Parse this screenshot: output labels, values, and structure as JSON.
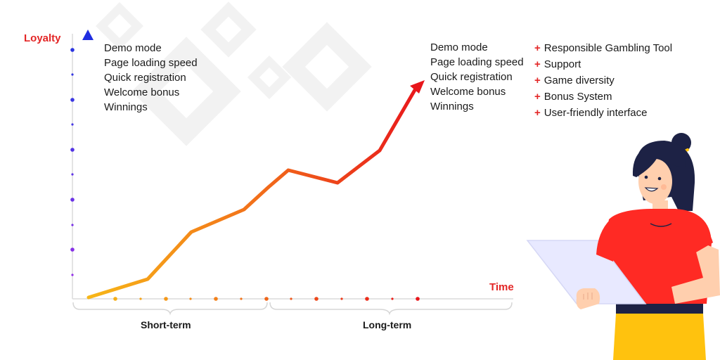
{
  "axes": {
    "y_title": "Loyalty",
    "x_title": "Time"
  },
  "periods": {
    "short": "Short-term",
    "long": "Long-term"
  },
  "left_factors": [
    "Demo mode",
    "Page loading speed",
    "Quick registration",
    "Welcome bonus",
    "Winnings"
  ],
  "right_factors": [
    "Demo mode",
    "Page loading speed",
    "Quick registration",
    "Welcome bonus",
    "Winnings"
  ],
  "extras": {
    "marker": "+",
    "items": [
      "Responsible Gambling Tool",
      "Support",
      "Game diversity",
      "Bonus System",
      "User-friendly interface"
    ]
  },
  "colors": {
    "accent_red": "#e32626",
    "y_axis_top": "#1f2de0",
    "y_axis_bottom": "#a32ee8",
    "curve_start": "#f7b718",
    "curve_end": "#e8161b",
    "shirt": "#ff2a24",
    "pants": "#ffc20e",
    "hair": "#1d2245"
  },
  "icons": [
    "diamond-shapes",
    "woman-with-laptop"
  ]
}
